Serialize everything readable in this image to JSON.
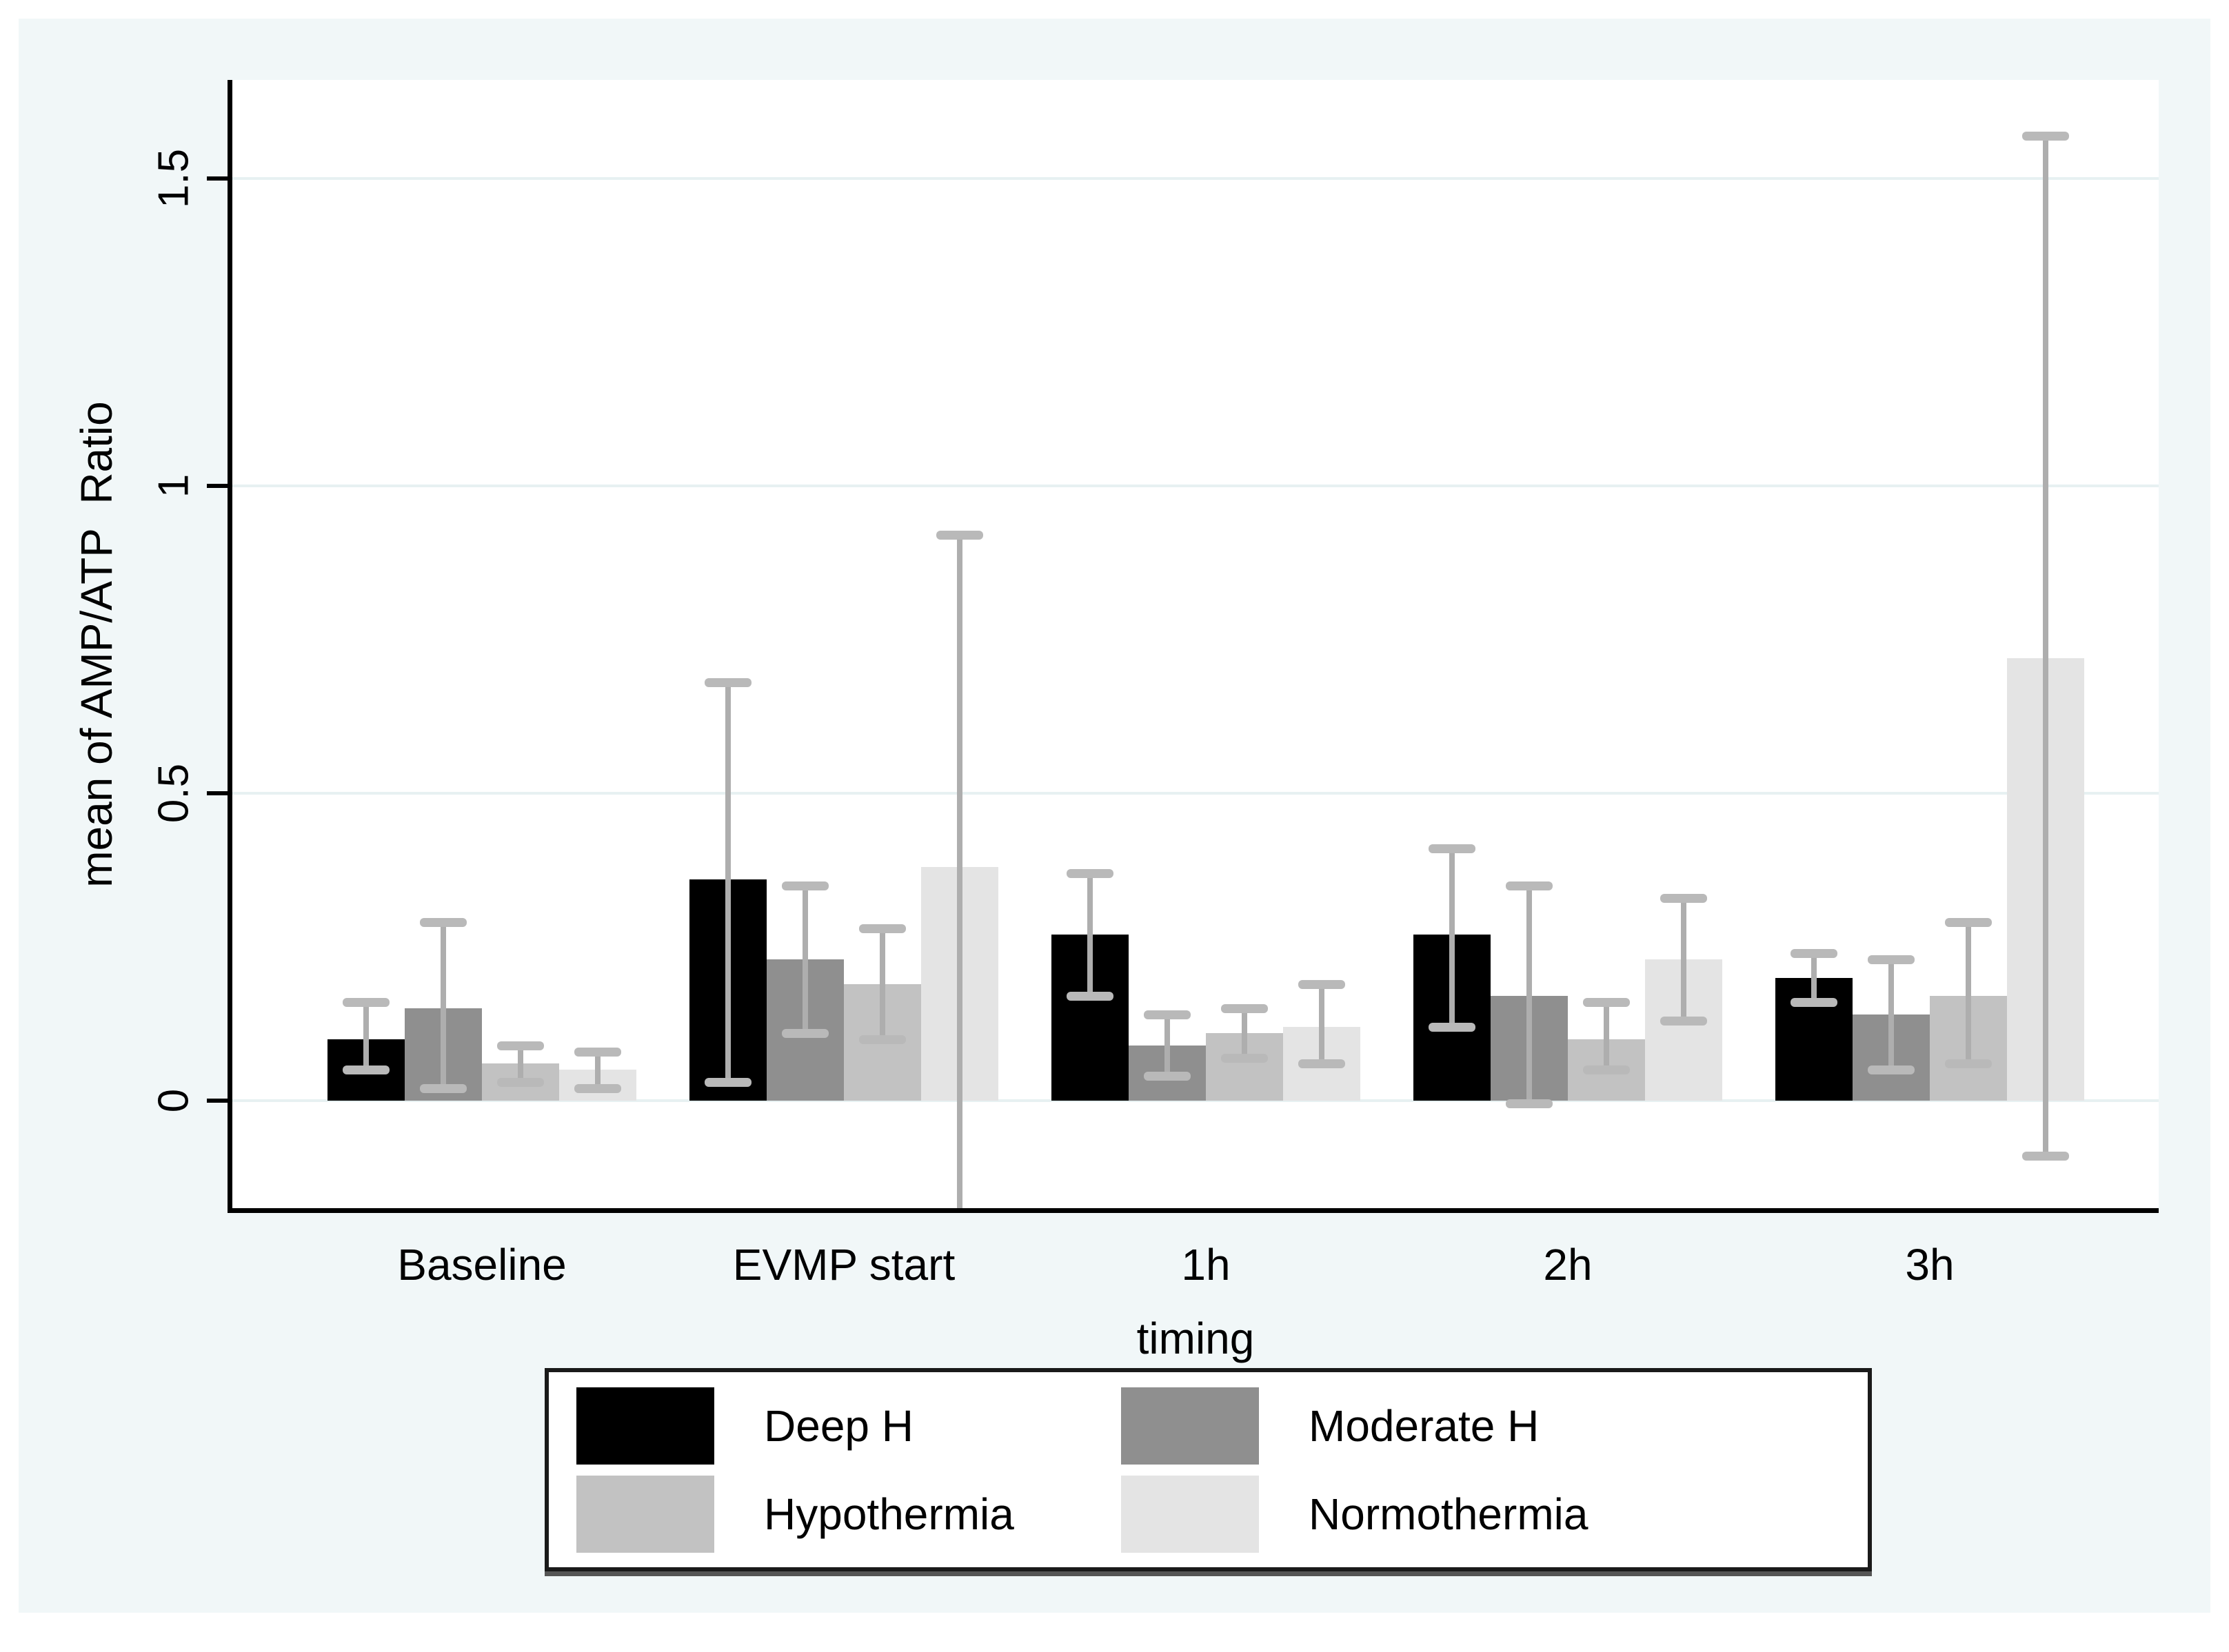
{
  "chart_data": {
    "type": "bar",
    "title": "",
    "xlabel": "timing",
    "ylabel": "mean of AMP/ATP  Ratio",
    "categories": [
      "Baseline",
      "EVMP start",
      "1h",
      "2h",
      "3h"
    ],
    "yticks": [
      0,
      0.5,
      1,
      1.5
    ],
    "ytick_labels": [
      "0",
      "0.5",
      "1",
      "1.5"
    ],
    "ylim": [
      -0.175,
      1.66
    ],
    "grid": true,
    "legend_position": "bottom",
    "error_bars": true,
    "series": [
      {
        "name": "Deep H",
        "color": "#000000",
        "values": [
          {
            "mean": 0.1,
            "lo": 0.05,
            "hi": 0.16
          },
          {
            "mean": 0.36,
            "lo": 0.03,
            "hi": 0.68
          },
          {
            "mean": 0.27,
            "lo": 0.17,
            "hi": 0.37
          },
          {
            "mean": 0.27,
            "lo": 0.12,
            "hi": 0.41
          },
          {
            "mean": 0.2,
            "lo": 0.16,
            "hi": 0.24
          }
        ]
      },
      {
        "name": "Moderate H",
        "color": "#8f8f8f",
        "values": [
          {
            "mean": 0.15,
            "lo": 0.02,
            "hi": 0.29
          },
          {
            "mean": 0.23,
            "lo": 0.11,
            "hi": 0.35
          },
          {
            "mean": 0.09,
            "lo": 0.04,
            "hi": 0.14
          },
          {
            "mean": 0.17,
            "lo": -0.005,
            "hi": 0.35
          },
          {
            "mean": 0.14,
            "lo": 0.05,
            "hi": 0.23
          }
        ]
      },
      {
        "name": "Hypothermia",
        "color": "#c2c2c2",
        "values": [
          {
            "mean": 0.06,
            "lo": 0.03,
            "hi": 0.09
          },
          {
            "mean": 0.19,
            "lo": 0.1,
            "hi": 0.28
          },
          {
            "mean": 0.11,
            "lo": 0.07,
            "hi": 0.15
          },
          {
            "mean": 0.1,
            "lo": 0.05,
            "hi": 0.16
          },
          {
            "mean": 0.17,
            "lo": 0.06,
            "hi": 0.29
          }
        ]
      },
      {
        "name": "Normothermia",
        "color": "#e4e4e4",
        "values": [
          {
            "mean": 0.05,
            "lo": 0.02,
            "hi": 0.08
          },
          {
            "mean": 0.38,
            "lo": -0.175,
            "hi": 0.92,
            "lo_clipped": true
          },
          {
            "mean": 0.12,
            "lo": 0.06,
            "hi": 0.19
          },
          {
            "mean": 0.23,
            "lo": 0.13,
            "hi": 0.33
          },
          {
            "mean": 0.72,
            "lo": -0.09,
            "hi": 1.57
          }
        ]
      }
    ]
  },
  "colors": {
    "page_background": "#ffffff",
    "graph_background": "#f1f7f8",
    "plot_background": "#ffffff",
    "gridline": "#e7f1f2",
    "axis": "#000000",
    "error_bar_spike": "#aeaeae",
    "error_bar_cap": "#b9b9b9",
    "legend_border": "#1a1a1a"
  }
}
